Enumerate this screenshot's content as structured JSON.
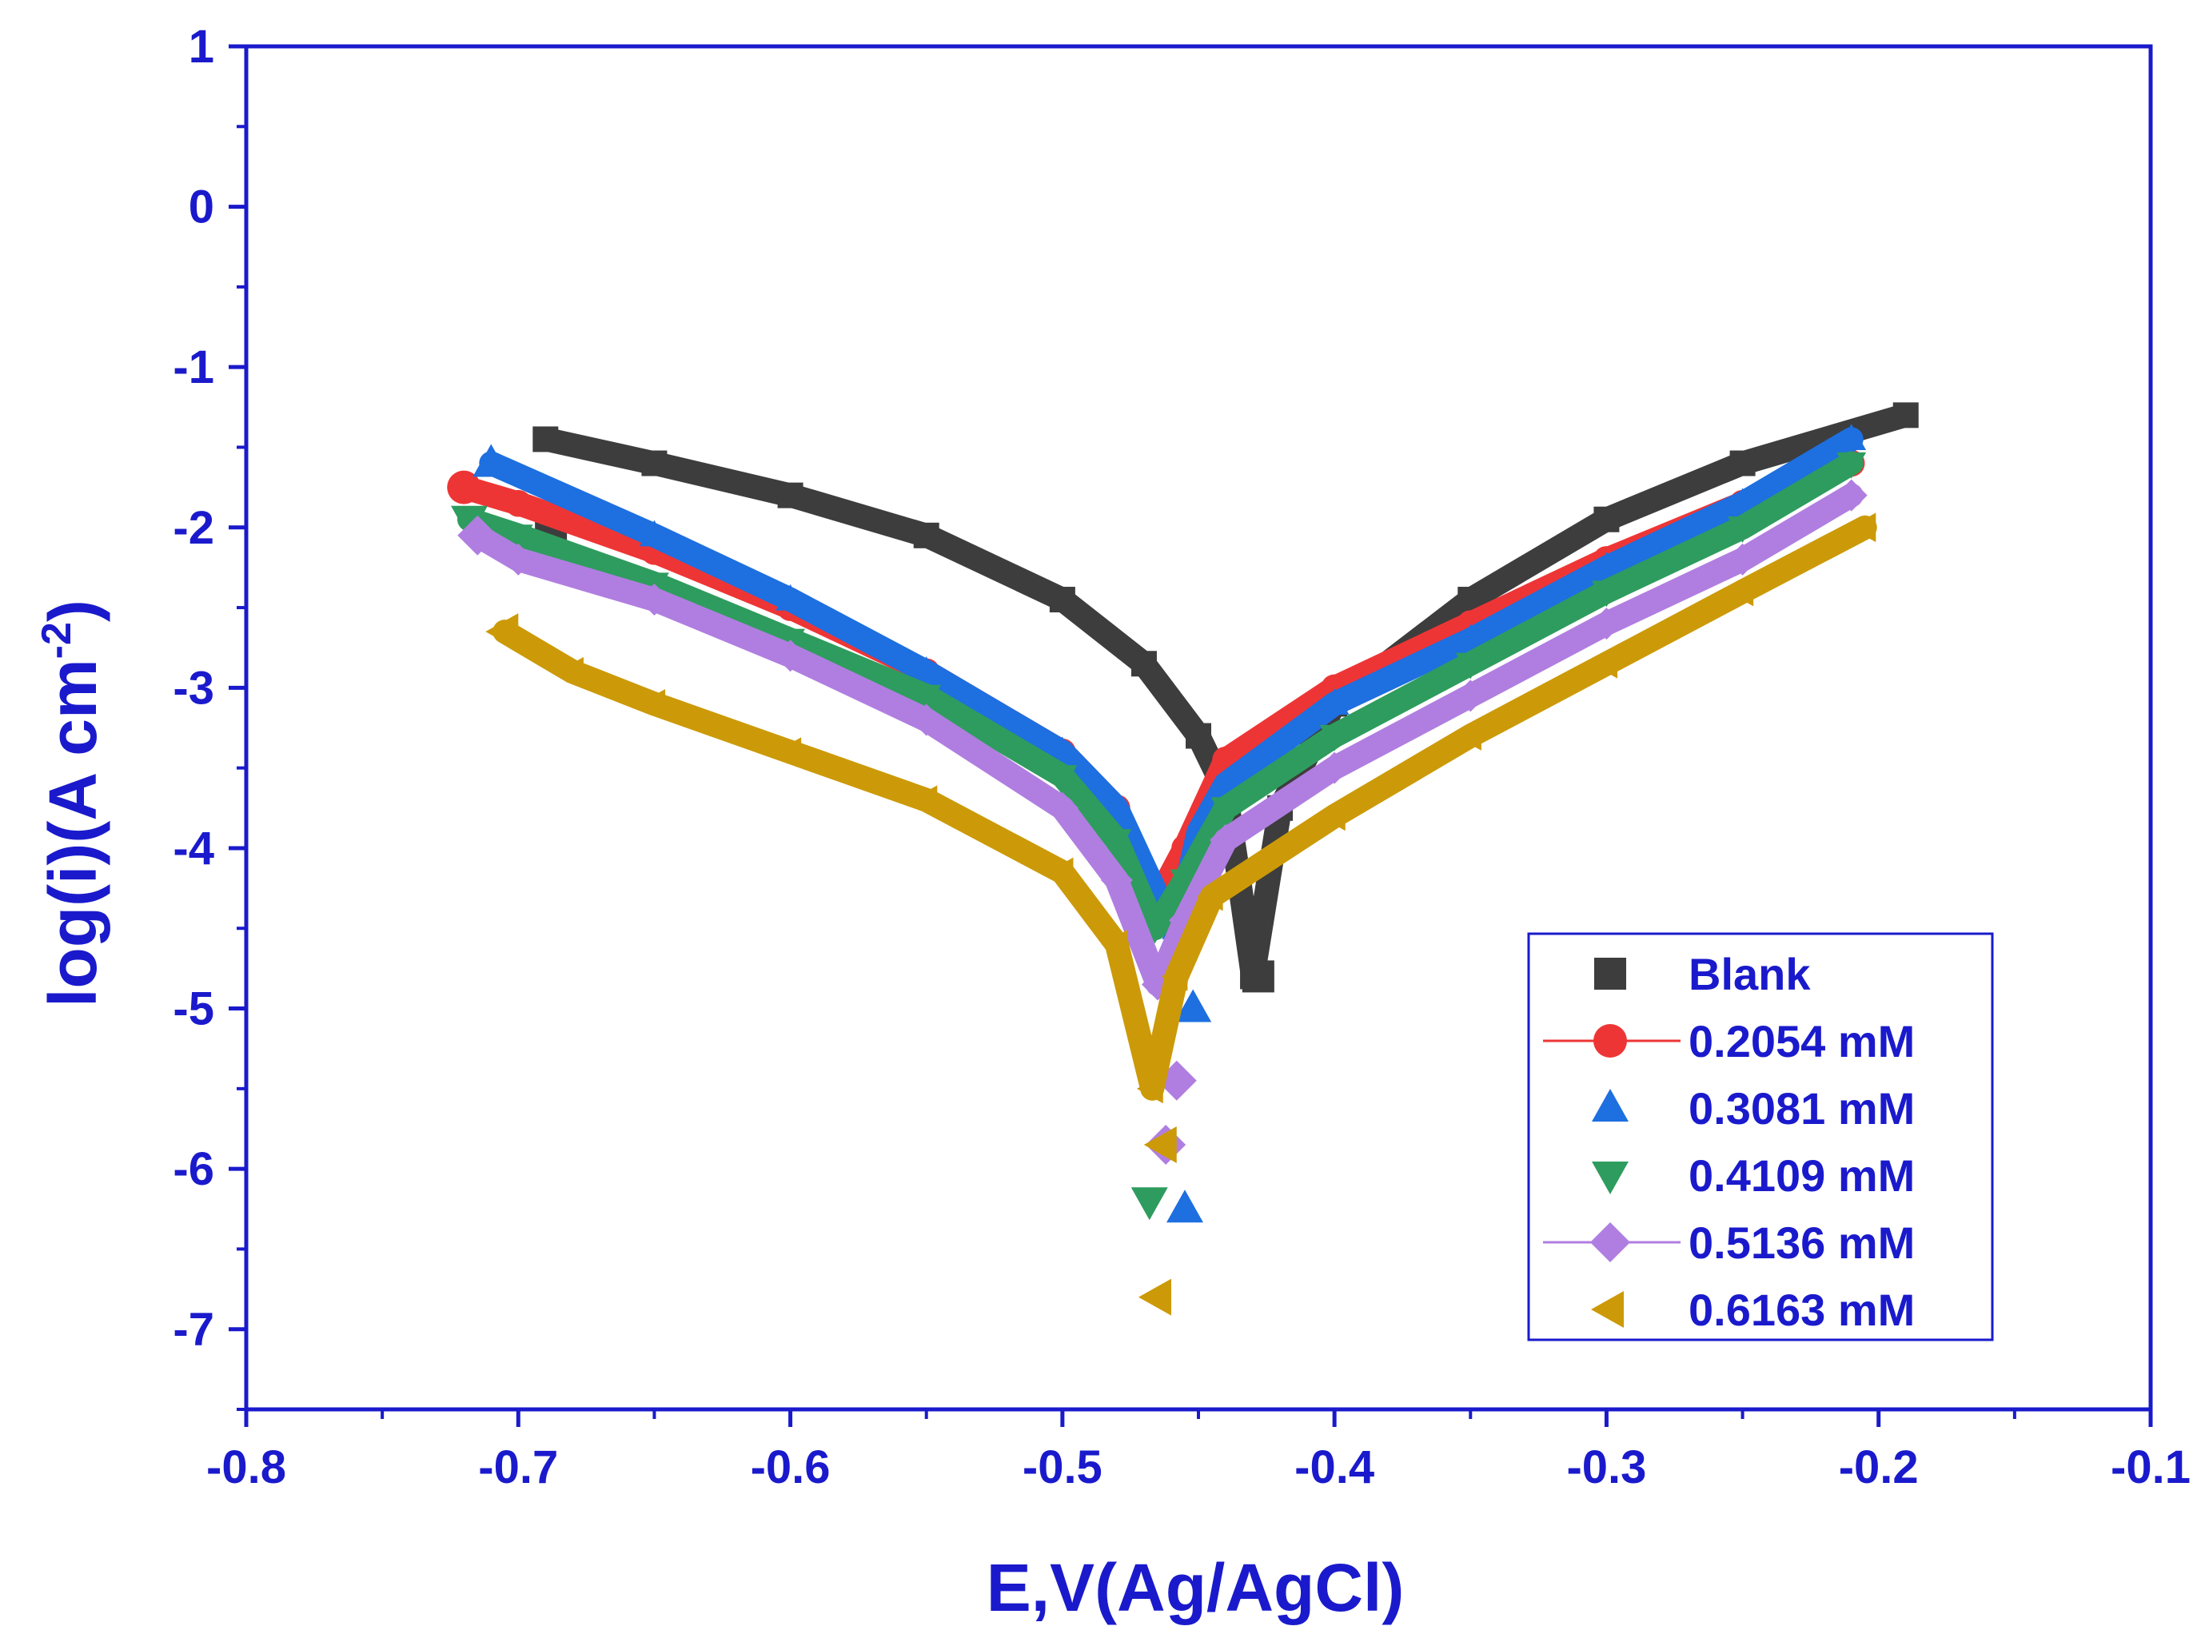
{
  "chart_data": {
    "type": "scatter",
    "title": "",
    "xlabel": "E,V(Ag/AgCl)",
    "ylabel_main": "log(i)(A cm",
    "ylabel_sup": "-2",
    "ylabel_close": ")",
    "xlim": [
      -0.8,
      -0.1
    ],
    "ylim": [
      -7.5,
      1
    ],
    "xticks": [
      "-0.8",
      "-0.7",
      "-0.6",
      "-0.5",
      "-0.4",
      "-0.3",
      "-0.2",
      "-0.1"
    ],
    "xtick_values": [
      -0.8,
      -0.7,
      -0.6,
      -0.5,
      -0.4,
      -0.3,
      -0.2,
      -0.1
    ],
    "yticks": [
      "1",
      "0",
      "-1",
      "-2",
      "-3",
      "-4",
      "-5",
      "-6",
      "-7"
    ],
    "ytick_values": [
      1,
      0,
      -1,
      -2,
      -3,
      -4,
      -5,
      -6,
      -7
    ],
    "grid": false,
    "legend_position": "bottom-right",
    "axis_color": "#1a1acc",
    "series": [
      {
        "name": "Blank",
        "color": "#3d3d3d",
        "marker": "square",
        "line": false,
        "x": [
          -0.69,
          -0.65,
          -0.6,
          -0.55,
          -0.5,
          -0.47,
          -0.45,
          -0.44,
          -0.435,
          -0.43,
          -0.42,
          -0.4,
          -0.35,
          -0.3,
          -0.25,
          -0.19
        ],
        "y": [
          -1.45,
          -1.6,
          -1.8,
          -2.05,
          -2.45,
          -2.85,
          -3.3,
          -3.65,
          -4.2,
          -4.8,
          -3.75,
          -3.1,
          -2.45,
          -1.95,
          -1.6,
          -1.3
        ],
        "end_points": [
          {
            "x": -0.688,
            "y": -2.0
          },
          {
            "x": -0.428,
            "y": -4.8
          }
        ]
      },
      {
        "name": "0.2054 mM",
        "color": "#ee3535",
        "marker": "circle",
        "line": true,
        "x": [
          -0.72,
          -0.7,
          -0.65,
          -0.6,
          -0.55,
          -0.5,
          -0.48,
          -0.466,
          -0.455,
          -0.44,
          -0.4,
          -0.35,
          -0.3,
          -0.25,
          -0.21
        ],
        "y": [
          -1.75,
          -1.85,
          -2.15,
          -2.5,
          -2.9,
          -3.4,
          -3.75,
          -4.35,
          -4.0,
          -3.45,
          -3.0,
          -2.6,
          -2.2,
          -1.85,
          -1.6
        ],
        "end_points": [
          {
            "x": -0.72,
            "y": -1.75
          }
        ]
      },
      {
        "name": "0.3081 mM",
        "color": "#1e6fe0",
        "marker": "triangle-up",
        "line": false,
        "x": [
          -0.71,
          -0.65,
          -0.6,
          -0.55,
          -0.5,
          -0.48,
          -0.465,
          -0.458,
          -0.45,
          -0.44,
          -0.4,
          -0.35,
          -0.3,
          -0.25,
          -0.21
        ],
        "y": [
          -1.6,
          -2.05,
          -2.45,
          -2.9,
          -3.4,
          -3.75,
          -4.3,
          -4.5,
          -3.9,
          -3.6,
          -3.1,
          -2.7,
          -2.25,
          -1.85,
          -1.45
        ],
        "end_points": [
          {
            "x": -0.71,
            "y": -1.6
          },
          {
            "x": -0.455,
            "y": -6.25
          },
          {
            "x": -0.452,
            "y": -5.0
          }
        ]
      },
      {
        "name": "0.4109 mM",
        "color": "#2e9c5e",
        "marker": "triangle-down",
        "line": false,
        "x": [
          -0.718,
          -0.7,
          -0.65,
          -0.6,
          -0.55,
          -0.5,
          -0.48,
          -0.466,
          -0.455,
          -0.44,
          -0.4,
          -0.35,
          -0.3,
          -0.25,
          -0.21
        ],
        "y": [
          -1.95,
          -2.05,
          -2.35,
          -2.7,
          -3.05,
          -3.55,
          -3.95,
          -4.5,
          -4.2,
          -3.75,
          -3.3,
          -2.85,
          -2.4,
          -2.0,
          -1.6
        ],
        "end_points": [
          {
            "x": -0.718,
            "y": -1.95
          },
          {
            "x": -0.468,
            "y": -6.2
          }
        ]
      },
      {
        "name": "0.5136 mM",
        "color": "#b07ee0",
        "marker": "diamond",
        "line": true,
        "x": [
          -0.715,
          -0.7,
          -0.65,
          -0.6,
          -0.55,
          -0.5,
          -0.48,
          -0.465,
          -0.455,
          -0.44,
          -0.4,
          -0.35,
          -0.3,
          -0.25,
          -0.21
        ],
        "y": [
          -2.05,
          -2.2,
          -2.45,
          -2.8,
          -3.2,
          -3.75,
          -4.2,
          -4.85,
          -4.45,
          -3.95,
          -3.5,
          -3.05,
          -2.6,
          -2.2,
          -1.8
        ],
        "end_points": [
          {
            "x": -0.715,
            "y": -2.05
          },
          {
            "x": -0.462,
            "y": -5.85
          },
          {
            "x": -0.458,
            "y": -5.45
          }
        ]
      },
      {
        "name": "0.6163 mM",
        "color": "#cc9a08",
        "marker": "triangle-left",
        "line": false,
        "x": [
          -0.705,
          -0.68,
          -0.65,
          -0.6,
          -0.55,
          -0.5,
          -0.48,
          -0.467,
          -0.458,
          -0.445,
          -0.4,
          -0.35,
          -0.3,
          -0.25,
          -0.205
        ],
        "y": [
          -2.65,
          -2.9,
          -3.1,
          -3.4,
          -3.7,
          -4.15,
          -4.6,
          -5.5,
          -4.8,
          -4.3,
          -3.8,
          -3.3,
          -2.85,
          -2.4,
          -2.0
        ],
        "end_points": [
          {
            "x": -0.705,
            "y": -2.65
          },
          {
            "x": -0.465,
            "y": -6.8
          },
          {
            "x": -0.463,
            "y": -5.85
          }
        ]
      }
    ]
  }
}
